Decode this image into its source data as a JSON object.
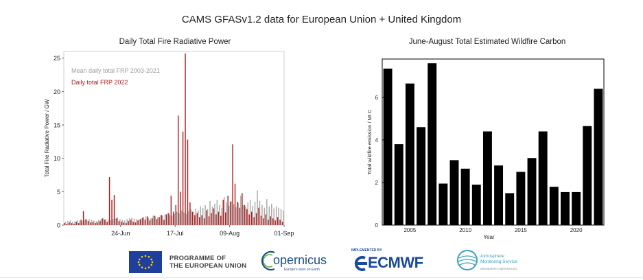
{
  "title": "CAMS GFASv1.2  data for European Union + United Kingdom",
  "chart_data": [
    {
      "type": "bar",
      "title": "Daily Total Fire Radiative Power",
      "ylabel": "Total Fire Radiative Power / GW",
      "xlabel": "",
      "ylim": [
        0,
        26
      ],
      "yticks": [
        0,
        5,
        10,
        15,
        20,
        25
      ],
      "xtick_labels": [
        {
          "label": "24-Jun",
          "day_index": 24
        },
        {
          "label": "17-Jul",
          "day_index": 47
        },
        {
          "label": "09-Aug",
          "day_index": 70
        },
        {
          "label": "01-Sep",
          "day_index": 93
        }
      ],
      "x_start": "2022-05-31",
      "legend": {
        "placement": "top-left",
        "entries": [
          {
            "name": "Mean  daily total FRP 2003-2021",
            "color": "#aaaaaa"
          },
          {
            "name": "Daily total FRP 2022",
            "color": "#b22222"
          }
        ]
      },
      "series": [
        {
          "name": "Mean  daily total FRP 2003-2021",
          "color": "#aaaaaa",
          "values": [
            0.5,
            0.6,
            0.7,
            0.5,
            0.6,
            0.8,
            0.7,
            0.6,
            0.7,
            0.8,
            0.9,
            0.8,
            0.7,
            0.6,
            0.8,
            0.9,
            1.0,
            0.9,
            0.8,
            0.7,
            0.9,
            1.0,
            1.2,
            0.9,
            0.8,
            0.7,
            0.9,
            1.0,
            1.1,
            1.0,
            0.9,
            0.8,
            1.0,
            1.2,
            1.3,
            1.1,
            1.0,
            1.4,
            1.3,
            1.2,
            1.5,
            1.4,
            1.6,
            1.8,
            1.5,
            1.4,
            1.7,
            2.0,
            1.8,
            2.2,
            1.9,
            1.7,
            2.1,
            2.4,
            2.0,
            2.5,
            2.2,
            2.8,
            2.6,
            3.0,
            2.4,
            3.6,
            2.8,
            3.2,
            3.8,
            3.0,
            2.6,
            4.2,
            3.4,
            2.9,
            3.6,
            3.1,
            2.7,
            3.3,
            4.4,
            3.0,
            2.8,
            3.4,
            3.8,
            2.9,
            3.5,
            5.2,
            3.6,
            3.0,
            2.6,
            3.9,
            2.8,
            3.2,
            2.5,
            2.8,
            2.6,
            2.4,
            2.2
          ]
        },
        {
          "name": "Daily total FRP 2022",
          "color": "#b22222",
          "values": [
            0.3,
            0.2,
            0.4,
            0.3,
            0.2,
            0.5,
            0.3,
            0.8,
            2.1,
            0.9,
            0.6,
            0.4,
            0.5,
            0.3,
            0.4,
            0.6,
            1.0,
            0.8,
            0.5,
            7.2,
            3.8,
            4.5,
            1.0,
            0.6,
            0.5,
            0.4,
            0.3,
            0.6,
            0.8,
            0.5,
            0.4,
            0.7,
            0.9,
            1.1,
            0.8,
            1.3,
            0.7,
            1.0,
            1.4,
            0.9,
            1.2,
            1.5,
            0.8,
            1.6,
            1.8,
            4.4,
            2.0,
            3.0,
            16.4,
            5.0,
            14.0,
            25.7,
            12.8,
            3.4,
            2.0,
            1.5,
            1.8,
            1.2,
            1.5,
            1.0,
            2.2,
            1.3,
            1.8,
            2.5,
            1.6,
            2.0,
            1.4,
            3.8,
            1.9,
            4.4,
            3.5,
            12.1,
            6.2,
            3.5,
            2.6,
            4.8,
            3.0,
            2.4,
            1.6,
            2.0,
            1.2,
            1.8,
            2.6,
            1.4,
            1.0,
            1.6,
            0.8,
            1.3,
            1.0,
            0.7,
            1.2,
            0.8,
            0.5
          ]
        }
      ]
    },
    {
      "type": "bar",
      "title": "June-August  Total Estimated Wildfire Carbon",
      "ylabel": "Total wildfire emission / Mt C",
      "xlabel": "Year",
      "ylim": [
        0,
        7.8
      ],
      "yticks": [
        0,
        2,
        4,
        6
      ],
      "xticks": [
        2005,
        2010,
        2015,
        2020
      ],
      "categories": [
        2003,
        2004,
        2005,
        2006,
        2007,
        2008,
        2009,
        2010,
        2011,
        2012,
        2013,
        2014,
        2015,
        2016,
        2017,
        2018,
        2019,
        2020,
        2021,
        2022
      ],
      "values": [
        7.35,
        3.8,
        6.65,
        4.6,
        7.6,
        1.95,
        3.05,
        2.65,
        1.9,
        4.4,
        2.8,
        1.5,
        2.5,
        3.15,
        4.4,
        1.8,
        1.55,
        1.55,
        4.65,
        6.4
      ],
      "color": "#000000"
    }
  ],
  "logos": {
    "eu_line1": "PROGRAMME OF",
    "eu_line2": "THE EUROPEAN UNION",
    "copernicus": "opernicus",
    "copernicus_tag": "Europe's eyes on Earth",
    "ecmwf_impl": "IMPLEMENTED BY",
    "ecmwf": "ECMWF",
    "ams_line1": "Atmosphere",
    "ams_line2": "Monitoring Service",
    "ams_url": "atmosphere.copernicus.eu"
  }
}
